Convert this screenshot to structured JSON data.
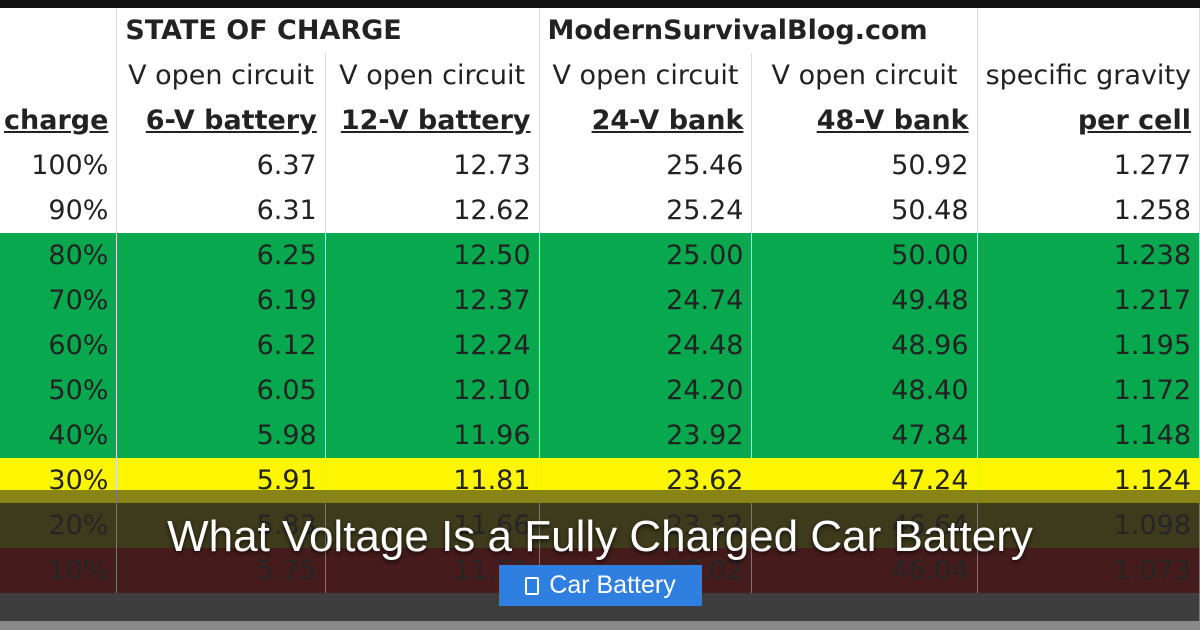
{
  "table": {
    "title": "STATE OF CHARGE",
    "watermark": "ModernSurvivalBlog.com",
    "sub_headers": [
      "V open circuit",
      "V open circuit",
      "V open circuit",
      "V open circuit",
      "specific gravity"
    ],
    "headers": [
      "charge",
      "6-V battery",
      "12-V battery",
      "24-V bank",
      "48-V bank",
      "per cell"
    ],
    "rows": [
      [
        "100%",
        "6.37",
        "12.73",
        "25.46",
        "50.92",
        "1.277"
      ],
      [
        "90%",
        "6.31",
        "12.62",
        "25.24",
        "50.48",
        "1.258"
      ],
      [
        "80%",
        "6.25",
        "12.50",
        "25.00",
        "50.00",
        "1.238"
      ],
      [
        "70%",
        "6.19",
        "12.37",
        "24.74",
        "49.48",
        "1.217"
      ],
      [
        "60%",
        "6.12",
        "12.24",
        "24.48",
        "48.96",
        "1.195"
      ],
      [
        "50%",
        "6.05",
        "12.10",
        "24.20",
        "48.40",
        "1.172"
      ],
      [
        "40%",
        "5.98",
        "11.96",
        "23.92",
        "47.84",
        "1.148"
      ],
      [
        "30%",
        "5.91",
        "11.81",
        "23.62",
        "47.24",
        "1.124"
      ],
      [
        "20%",
        "5.83",
        "11.66",
        "23.32",
        "46.64",
        "1.098"
      ],
      [
        "10%",
        "5.75",
        "11.51",
        "23.02",
        "46.04",
        "1.073"
      ]
    ],
    "row_colors": [
      "#ffffff",
      "#ffffff",
      "#08a84f",
      "#08a84f",
      "#08a84f",
      "#08a84f",
      "#08a84f",
      "#fdf600",
      "#5a500e",
      "#6a0d0d"
    ]
  },
  "headline": "What Voltage Is a Fully Charged Car Battery",
  "category_badge": {
    "label": "Car Battery",
    "icon": "folder-icon",
    "color": "#2f7fe0"
  }
}
